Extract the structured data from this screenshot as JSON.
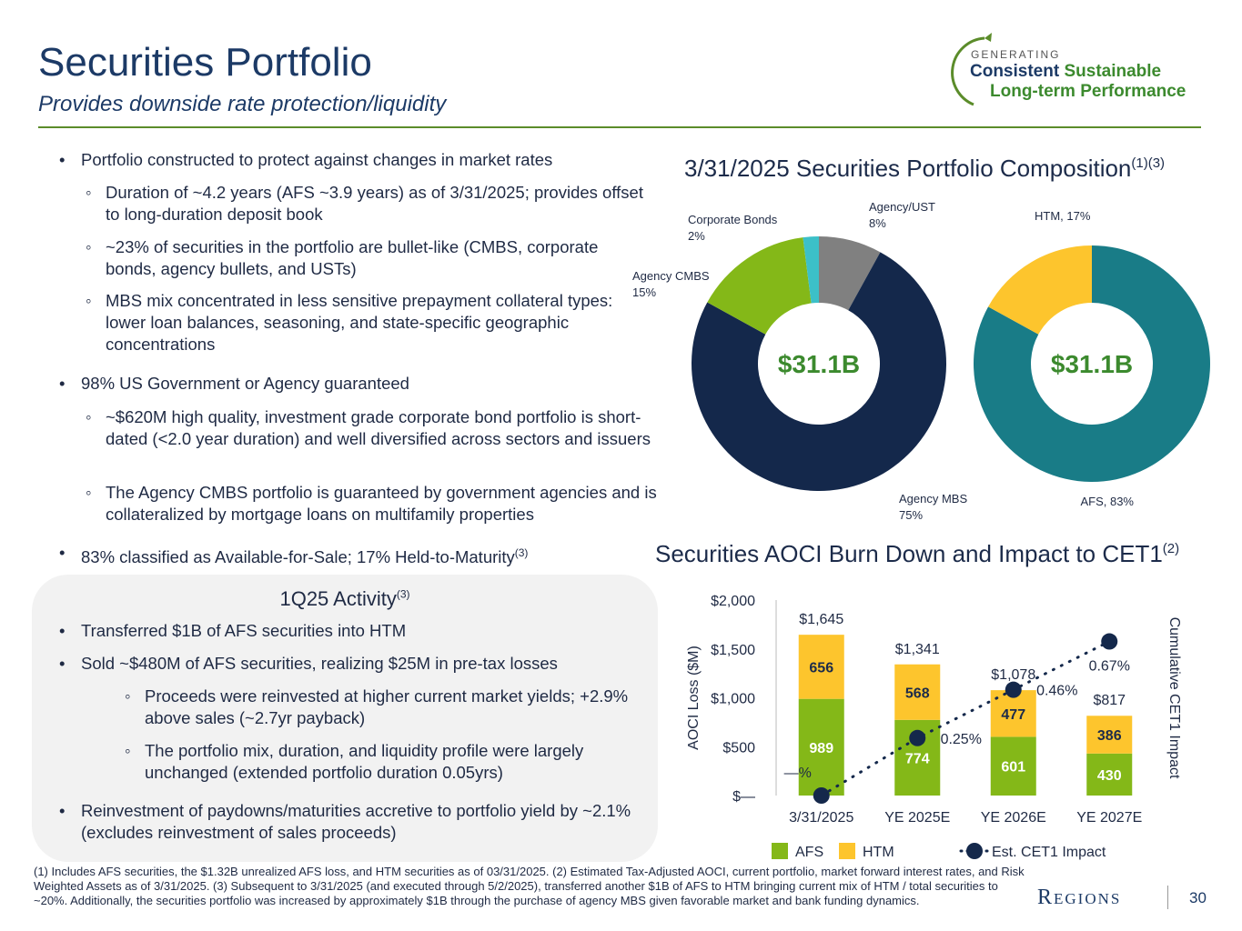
{
  "header": {
    "title": "Securities Portfolio",
    "subtitle": "Provides downside rate protection/liquidity"
  },
  "logo": {
    "kicker": "GENERATING",
    "word1": "Consistent",
    "word2": "Sustainable",
    "line2": "Long-term Performance"
  },
  "bullets": [
    {
      "text": "Portfolio constructed to protect against changes in market rates",
      "sub": [
        "Duration of  ~4.2 years (AFS ~3.9 years) as of 3/31/2025; provides offset to long-duration deposit book",
        "~23% of securities in the portfolio are bullet-like (CMBS, corporate bonds, agency bullets, and USTs)",
        "MBS mix concentrated in less sensitive prepayment collateral types: lower loan balances, seasoning, and state-specific geographic concentrations"
      ]
    },
    {
      "text": "98% US Government or Agency guaranteed",
      "sub": [
        "~$620M high quality, investment grade corporate bond portfolio is short-dated (<2.0 year duration) and well diversified across sectors and issuers",
        "The Agency CMBS portfolio is guaranteed by government agencies and is collateralized by mortgage loans on multifamily properties"
      ]
    },
    {
      "text": "83% classified as Available-for-Sale; 17% Held-to-Maturity",
      "sup": "(3)"
    }
  ],
  "activity": {
    "title": "1Q25 Activity",
    "sup": "(3)",
    "items": [
      {
        "text": "Transferred $1B of AFS securities into HTM"
      },
      {
        "text": "Sold ~$480M of AFS securities, realizing $25M in pre-tax losses",
        "sub": [
          "Proceeds were reinvested at higher current market yields; +2.9% above sales (~2.7yr payback)",
          "The portfolio mix, duration, and liquidity profile were largely unchanged (extended portfolio duration 0.05yrs)"
        ]
      },
      {
        "text": "Reinvestment of paydowns/maturities accretive to portfolio yield by ~2.1% (excludes reinvestment of sales proceeds)"
      }
    ]
  },
  "chart_data": [
    {
      "type": "pie",
      "title": "3/31/2025 Securities Portfolio Composition",
      "title_sup": "(1)(3)",
      "categories": [
        "Agency/UST",
        "Agency MBS",
        "Agency CMBS",
        "Corporate Bonds"
      ],
      "values": [
        8,
        75,
        15,
        2
      ],
      "value_labels": [
        "8%",
        "75%",
        "15%",
        "2%"
      ],
      "colors": [
        "#808080",
        "#14284b",
        "#84b818",
        "#3cc0c8"
      ],
      "center_label": "$31.1B"
    },
    {
      "type": "pie",
      "labels": [
        "AFS, 83%",
        "HTM, 17%"
      ],
      "values": [
        83,
        17
      ],
      "colors": [
        "#197c87",
        "#fdc52d"
      ],
      "center_label": "$31.1B"
    },
    {
      "type": "bar",
      "title": "Securities AOCI Burn Down and Impact to CET1",
      "title_sup": "(2)",
      "stacked": true,
      "categories": [
        "3/31/2025",
        "YE 2025E",
        "YE 2026E",
        "YE 2027E"
      ],
      "series": [
        {
          "name": "AFS",
          "color": "#84b818",
          "values": [
            989,
            774,
            601,
            430
          ]
        },
        {
          "name": "HTM",
          "color": "#fdc52d",
          "values": [
            656,
            568,
            477,
            386
          ]
        },
        {
          "name": "Est. CET1 Impact",
          "color": "#14284b",
          "type": "line",
          "axis": "y2",
          "values": [
            0,
            0.25,
            0.46,
            0.67
          ],
          "value_labels": [
            "—%",
            "0.25%",
            "0.46%",
            "0.67%"
          ]
        }
      ],
      "totals": [
        1645,
        1341,
        1078,
        817
      ],
      "total_labels": [
        "$1,645",
        "$1,341",
        "$1,078",
        "$817"
      ],
      "ylabel": "AOCI Loss ($M)",
      "y2label": "Cumulative CET1 Impact",
      "ylim": [
        0,
        2000
      ],
      "yticks": [
        {
          "value": 0,
          "label": "$—"
        },
        {
          "value": 500,
          "label": "$500"
        },
        {
          "value": 1000,
          "label": "$1,000"
        },
        {
          "value": 1500,
          "label": "$1,500"
        },
        {
          "value": 2000,
          "label": "$2,000"
        }
      ],
      "y2lim": [
        0,
        0.85
      ]
    }
  ],
  "footnote": "(1) Includes AFS securities, the $1.32B unrealized AFS loss, and HTM securities as of 03/31/2025.  (2) Estimated Tax-Adjusted AOCI, current portfolio, market forward interest rates, and Risk Weighted Assets as of  3/31/2025. (3) Subsequent to 3/31/2025 (and executed through 5/2/2025), transferred another $1B of AFS to HTM bringing current mix of HTM / total securities to ~20%.  Additionally, the securities portfolio was increased by approximately $1B through the purchase of agency MBS given favorable market and bank funding dynamics.",
  "footer": {
    "brand": "Regions",
    "page": "30"
  }
}
